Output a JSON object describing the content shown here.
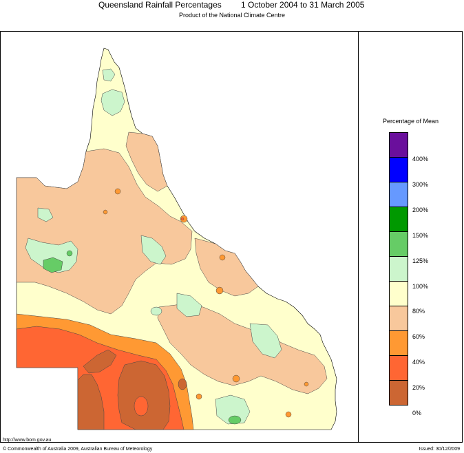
{
  "header": {
    "title": "Queensland Rainfall Percentages",
    "period": "1 October 2004 to 31 March 2005",
    "subtitle": "Product of the National Climate Centre"
  },
  "legend": {
    "title": "Percentage of Mean",
    "bands": [
      {
        "color": "#6a0f9c"
      },
      {
        "color": "#0000ff"
      },
      {
        "color": "#6699ff"
      },
      {
        "color": "#009900"
      },
      {
        "color": "#66cc66"
      },
      {
        "color": "#ccf5cc"
      },
      {
        "color": "#ffffcc"
      },
      {
        "color": "#f8c89c"
      },
      {
        "color": "#ff9933"
      },
      {
        "color": "#ff6633"
      },
      {
        "color": "#cc6633"
      }
    ],
    "labels": [
      "400%",
      "300%",
      "200%",
      "150%",
      "125%",
      "100%",
      "80%",
      "60%",
      "40%",
      "20%",
      "0%"
    ]
  },
  "colors": {
    "band_0_20": "#cc6633",
    "band_20_40": "#ff6633",
    "band_40_60": "#ff9933",
    "band_60_80": "#f8c89c",
    "band_80_100": "#ffffcc",
    "band_100_125": "#ccf5cc",
    "band_125_150": "#66cc66",
    "band_150_200": "#009900"
  },
  "footer": {
    "url": "http://www.bom.gov.au",
    "copyright": "© Commonwealth of Australia 2009, Australian Bureau of Meteorology",
    "issued": "Issued: 30/12/2009"
  }
}
